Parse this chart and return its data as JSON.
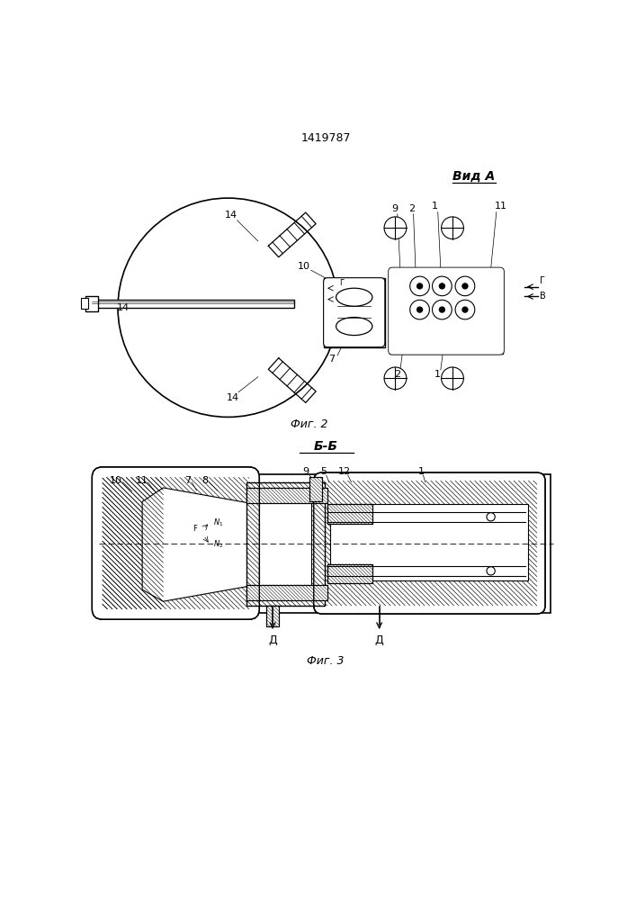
{
  "patent_number": "1419787",
  "fig2_label": "Фиг. 2",
  "fig3_label": "Фиг. 3",
  "view_a_label": "Вид А",
  "section_bb_label": "Б-Б",
  "bg_color": "#ffffff",
  "line_color": "#000000"
}
